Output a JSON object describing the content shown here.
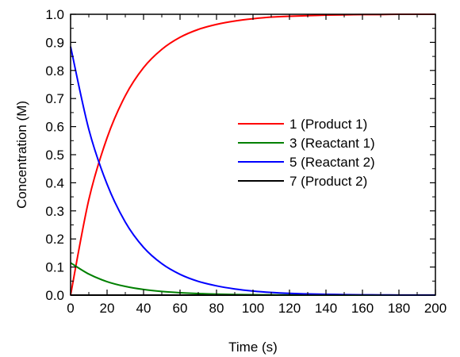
{
  "chart_data": {
    "type": "line",
    "xlabel": "Time (s)",
    "ylabel": "Concentration (M)",
    "xlim": [
      0,
      200
    ],
    "ylim": [
      0.0,
      1.0
    ],
    "xticks": [
      0,
      20,
      40,
      60,
      80,
      100,
      120,
      140,
      160,
      180,
      200
    ],
    "xtick_labels": [
      "0",
      "20",
      "40",
      "60",
      "80",
      "100",
      "120",
      "140",
      "160",
      "180",
      "200"
    ],
    "yticks": [
      0.0,
      0.1,
      0.2,
      0.3,
      0.4,
      0.5,
      0.6,
      0.7,
      0.8,
      0.9,
      1.0
    ],
    "ytick_labels": [
      "0.0",
      "0.1",
      "0.2",
      "0.3",
      "0.4",
      "0.5",
      "0.6",
      "0.7",
      "0.8",
      "0.9",
      "1.0"
    ],
    "grid": false,
    "legend_position": "center-right",
    "x": [
      0,
      10,
      20,
      30,
      40,
      50,
      60,
      70,
      80,
      90,
      100,
      110,
      120,
      130,
      140,
      150,
      160,
      170,
      180,
      190,
      200
    ],
    "series": [
      {
        "name": "1 (Product 1)",
        "color": "#ff0000",
        "values": [
          0.0,
          0.34,
          0.56,
          0.71,
          0.81,
          0.875,
          0.918,
          0.946,
          0.964,
          0.976,
          0.984,
          0.99,
          0.993,
          0.995,
          0.997,
          0.998,
          0.999,
          0.999,
          1.0,
          1.0,
          1.0
        ]
      },
      {
        "name": "3 (Reactant 1)",
        "color": "#008000",
        "values": [
          0.115,
          0.075,
          0.048,
          0.031,
          0.02,
          0.013,
          0.0085,
          0.0055,
          0.0035,
          0.0023,
          0.0015,
          0.001,
          0.0006,
          0.0004,
          0.0003,
          0.0002,
          0.0001,
          0.0001,
          0.0,
          0.0,
          0.0
        ]
      },
      {
        "name": "5 (Reactant 2)",
        "color": "#0000ff",
        "values": [
          0.885,
          0.59,
          0.395,
          0.26,
          0.17,
          0.112,
          0.074,
          0.049,
          0.033,
          0.022,
          0.0145,
          0.0095,
          0.0063,
          0.0042,
          0.0028,
          0.0019,
          0.0012,
          0.0008,
          0.0005,
          0.0003,
          0.0002
        ]
      },
      {
        "name": "7 (Product 2)",
        "color": "#000000",
        "values": [
          0,
          0,
          0,
          0,
          0,
          0,
          0,
          0,
          0,
          0,
          0,
          0,
          0,
          0,
          0,
          0,
          0,
          0,
          0,
          0,
          0
        ]
      }
    ]
  }
}
